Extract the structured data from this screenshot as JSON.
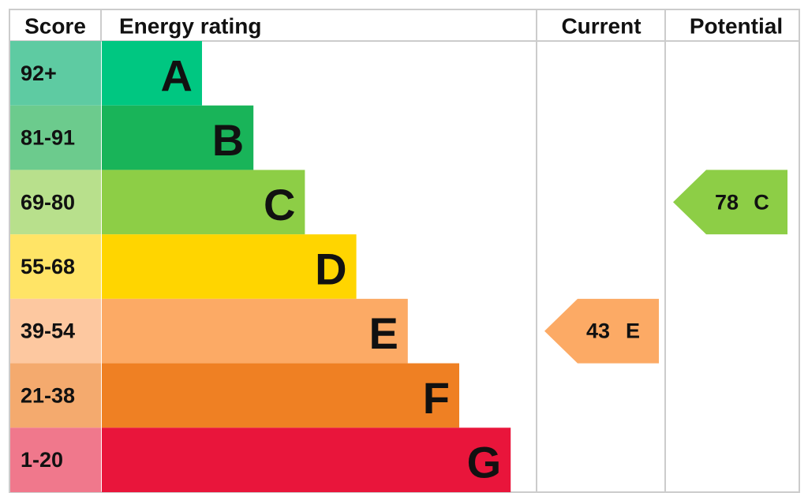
{
  "headers": {
    "score": "Score",
    "rating": "Energy rating",
    "current": "Current",
    "potential": "Potential"
  },
  "rows": [
    {
      "score": "92+",
      "letter": "A",
      "color": "#00c781",
      "score_color": "#5ecba2"
    },
    {
      "score": "81-91",
      "letter": "B",
      "color": "#19b459",
      "score_color": "#6ccb8d"
    },
    {
      "score": "69-80",
      "letter": "C",
      "color": "#8dce46",
      "score_color": "#b8e08c"
    },
    {
      "score": "55-68",
      "letter": "D",
      "color": "#ffd500",
      "score_color": "#ffe466"
    },
    {
      "score": "39-54",
      "letter": "E",
      "color": "#fcaa65",
      "score_color": "#fdc8a0"
    },
    {
      "score": "21-38",
      "letter": "F",
      "color": "#ef8023",
      "score_color": "#f4aa6e"
    },
    {
      "score": "1-20",
      "letter": "G",
      "color": "#e9153b",
      "score_color": "#f0788c"
    }
  ],
  "current": {
    "value": 43,
    "letter": "E"
  },
  "potential": {
    "value": 78,
    "letter": "C"
  }
}
